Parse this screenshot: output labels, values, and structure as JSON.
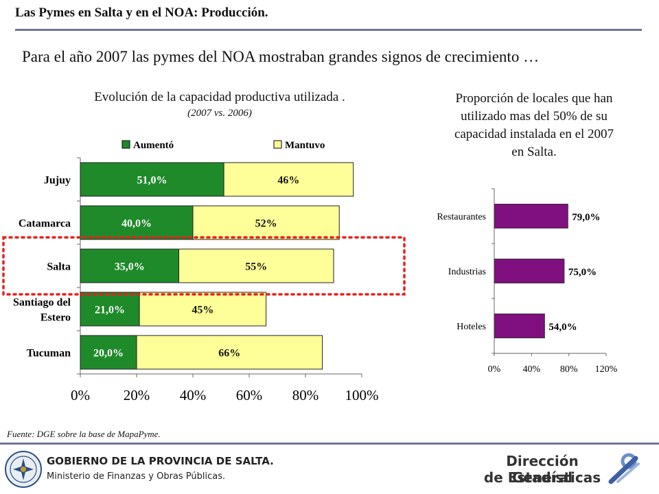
{
  "header": {
    "title": "Las Pymes en Salta y en el NOA: Producción.",
    "subtitle": "Para el año 2007 las pymes del NOA mostraban grandes signos de crecimiento …"
  },
  "left_panel": {
    "title": "Evolución de la capacidad productiva utilizada .",
    "subtitle": "(2007 vs. 2006)"
  },
  "right_panel": {
    "title_lines": [
      "Proporción de locales que han",
      "utilizado mas del 50% de su",
      "capacidad instalada en el 2007",
      "en Salta."
    ]
  },
  "source": "Fuente: DGE  sobre la base de MapaPyme.",
  "footer": {
    "gov_line1": "GOBIERNO DE LA PROVINCIA DE SALTA.",
    "gov_line2": "Ministerio de Finanzas y Obras Públicas.",
    "dge_line1": "Dirección General",
    "dge_line2": "de Estadísticas"
  },
  "colors": {
    "aumento": "#1f8a2a",
    "mantuvo": "#ffff99",
    "purple": "#800f7f",
    "highlight": "#e8201c",
    "rule": "#6f7497"
  },
  "chart_data": [
    {
      "type": "bar",
      "orientation": "horizontal",
      "stacked": true,
      "title": "Evolución de la capacidad productiva utilizada .",
      "subtitle": "(2007 vs. 2006)",
      "categories": [
        "Jujuy",
        "Catamarca",
        "Salta",
        "Santiago del Estero",
        "Tucuman"
      ],
      "category_label_lines": [
        [
          "Jujuy"
        ],
        [
          "Catamarca"
        ],
        [
          "Salta"
        ],
        [
          "Santiago del",
          "Estero"
        ],
        [
          "Tucuman"
        ]
      ],
      "series": [
        {
          "name": "Aumentó",
          "values": [
            51,
            40,
            35,
            21,
            20
          ],
          "labels": [
            "51,0%",
            "40,0%",
            "35,0%",
            "21,0%",
            "20,0%"
          ]
        },
        {
          "name": "Mantuvo",
          "values": [
            46,
            52,
            55,
            45,
            66
          ],
          "labels": [
            "46%",
            "52%",
            "55%",
            "45%",
            "66%"
          ]
        }
      ],
      "xlim": [
        0,
        100
      ],
      "xticks": [
        0,
        20,
        40,
        60,
        80,
        100
      ],
      "xtick_labels": [
        "0%",
        "20%",
        "40%",
        "60%",
        "80%",
        "100%"
      ],
      "legend": "top",
      "highlighted_category": "Salta"
    },
    {
      "type": "bar",
      "orientation": "horizontal",
      "title": "Proporción de locales que han utilizado mas del 50% de su capacidad instalada en el 2007 en Salta.",
      "categories": [
        "Restaurantes",
        "Industrias",
        "Hoteles"
      ],
      "values": [
        79,
        75,
        54
      ],
      "labels": [
        "79,0%",
        "75,0%",
        "54,0%"
      ],
      "xlim": [
        0,
        120
      ],
      "xticks": [
        0,
        40,
        80,
        120
      ],
      "xtick_labels": [
        "0%",
        "40%",
        "80%",
        "120%"
      ]
    }
  ]
}
